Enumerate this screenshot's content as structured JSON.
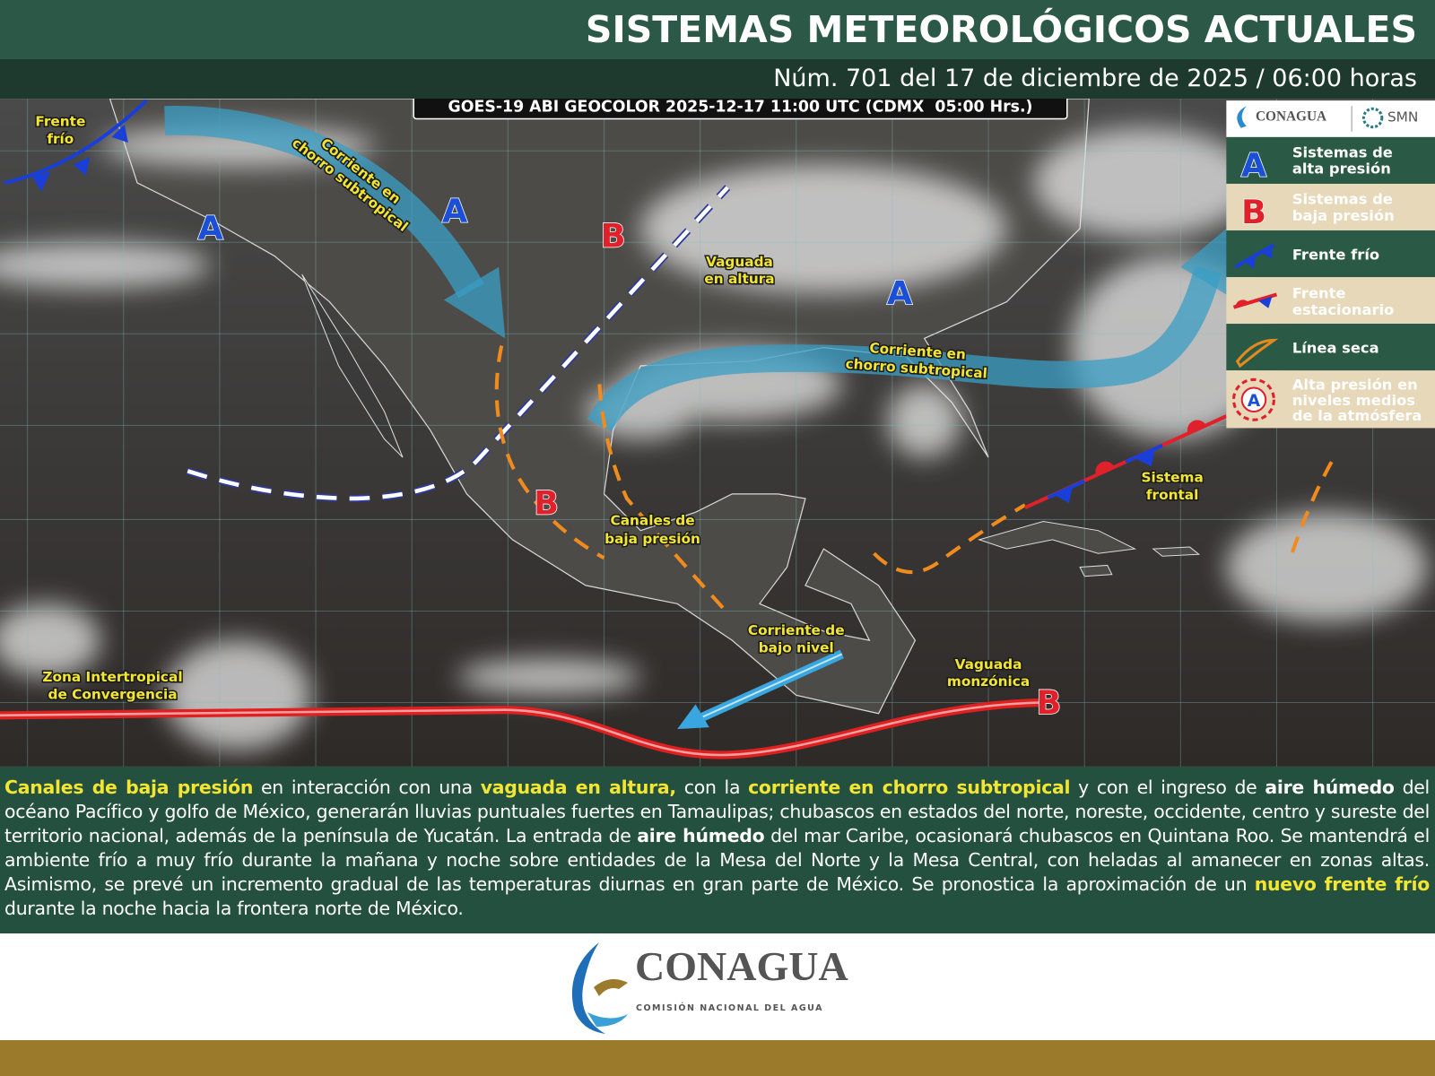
{
  "header": {
    "title": "SISTEMAS METEOROLÓGICOS ACTUALES",
    "subtitle": "Núm. 701 del 17 de diciembre de 2025 / 06:00 horas"
  },
  "map": {
    "satellite_caption": "GOES-19 ABI GEOCOLOR 2025-12-17 11:00 UTC (CDMX  05:00 Hrs.)",
    "labels": [
      {
        "lines": [
          "Frente",
          "frío"
        ]
      },
      {
        "lines": [
          "Corriente en",
          "chorro subtropical"
        ]
      },
      {
        "lines": [
          "Vaguada",
          "en altura"
        ]
      },
      {
        "lines": [
          "Corriente en",
          "chorro subtropical"
        ]
      },
      {
        "lines": [
          "Canales de",
          "baja presión"
        ]
      },
      {
        "lines": [
          "Sistema",
          "frontal"
        ]
      },
      {
        "lines": [
          "Corriente de",
          "bajo nivel"
        ]
      },
      {
        "lines": [
          "Vaguada",
          "monzónica"
        ]
      },
      {
        "lines": [
          "Zona Intertropical",
          "de Convergencia"
        ]
      }
    ],
    "pressure_systems": [
      {
        "letter": "A"
      },
      {
        "letter": "A"
      },
      {
        "letter": "B"
      },
      {
        "letter": "A"
      },
      {
        "letter": "B"
      },
      {
        "letter": "B"
      }
    ]
  },
  "legend": {
    "logos": [
      "CONAGUA",
      "SMN"
    ],
    "items": [
      {
        "lines": [
          "Sistemas de",
          "alta presión"
        ]
      },
      {
        "lines": [
          "Sistemas de",
          "baja presión"
        ]
      },
      {
        "lines": [
          "Frente frío"
        ]
      },
      {
        "lines": [
          "Frente",
          "estacionario"
        ]
      },
      {
        "lines": [
          "Línea seca"
        ]
      },
      {
        "lines": [
          "Alta presión en",
          "niveles medios",
          "de la atmósfera"
        ]
      }
    ],
    "symbol_letters": [
      "A",
      "B",
      "A"
    ]
  },
  "description": {
    "segments": [
      {
        "text": "Canales de baja presión",
        "style": "highlight"
      },
      {
        "text": " en interacción con una ",
        "style": "plain"
      },
      {
        "text": "vaguada en altura,",
        "style": "highlight"
      },
      {
        "text": " con la ",
        "style": "plain"
      },
      {
        "text": "corriente en chorro subtropical",
        "style": "highlight"
      },
      {
        "text": " y con el ingreso de ",
        "style": "plain"
      },
      {
        "text": "aire húmedo",
        "style": "bold"
      },
      {
        "text": " del océano Pacífico y golfo de México, generarán lluvias puntuales fuertes en Tamaulipas; chubascos en estados del norte, noreste, occidente, centro y sureste del territorio nacional, además de la península de Yucatán. La entrada de ",
        "style": "plain"
      },
      {
        "text": "aire húmedo",
        "style": "bold"
      },
      {
        "text": " del mar Caribe, ocasionará chubascos en Quintana Roo. Se mantendrá el ambiente frío a muy frío durante la mañana y noche sobre entidades de la Mesa del Norte y la Mesa Central, con heladas al amanecer en zonas altas. Asimismo, se prevé un incremento gradual de las temperaturas diurnas en gran parte de México. Se pronostica la aproximación de un ",
        "style": "plain"
      },
      {
        "text": "nuevo frente frío",
        "style": "highlight"
      },
      {
        "text": " durante la noche hacia la frontera norte de México.",
        "style": "plain"
      }
    ]
  },
  "footer": {
    "logo_name": "CONAGUA",
    "logo_subtitle": "COMISIÓN NACIONAL DEL AGUA"
  }
}
